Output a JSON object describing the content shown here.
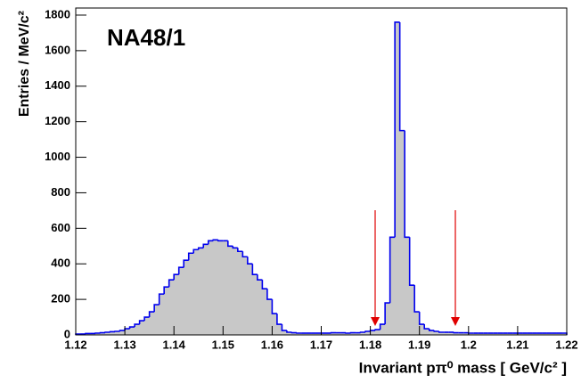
{
  "chart_data": {
    "type": "histogram",
    "annotation": "NA48/1",
    "xlabel": "Invariant pπ⁰ mass [ GeV/c² ]",
    "ylabel": "Entries / MeV/c²",
    "fill_color": "#c8c8c8",
    "line_color": "#0000ee",
    "bins": [
      1.12,
      1.121,
      1.122,
      1.123,
      1.124,
      1.125,
      1.126,
      1.127,
      1.128,
      1.129,
      1.13,
      1.131,
      1.132,
      1.133,
      1.134,
      1.135,
      1.136,
      1.137,
      1.138,
      1.139,
      1.14,
      1.141,
      1.142,
      1.143,
      1.144,
      1.145,
      1.146,
      1.147,
      1.148,
      1.149,
      1.15,
      1.151,
      1.152,
      1.153,
      1.154,
      1.155,
      1.156,
      1.157,
      1.158,
      1.159,
      1.16,
      1.161,
      1.162,
      1.163,
      1.164,
      1.165,
      1.166,
      1.167,
      1.168,
      1.169,
      1.17,
      1.171,
      1.172,
      1.173,
      1.174,
      1.175,
      1.176,
      1.177,
      1.178,
      1.179,
      1.18,
      1.181,
      1.182,
      1.183,
      1.184,
      1.185,
      1.186,
      1.187,
      1.188,
      1.189,
      1.19,
      1.191,
      1.192,
      1.193,
      1.194,
      1.195,
      1.196,
      1.197,
      1.198,
      1.199,
      1.2,
      1.201,
      1.202,
      1.203,
      1.204,
      1.205,
      1.206,
      1.207,
      1.208,
      1.209,
      1.21,
      1.211,
      1.212,
      1.213,
      1.214,
      1.215,
      1.216,
      1.217,
      1.218,
      1.219,
      1.22
    ],
    "values": [
      5,
      5,
      8,
      8,
      10,
      12,
      15,
      18,
      20,
      25,
      35,
      45,
      60,
      80,
      100,
      130,
      170,
      230,
      270,
      310,
      340,
      380,
      420,
      460,
      480,
      490,
      510,
      530,
      535,
      530,
      530,
      500,
      490,
      470,
      440,
      400,
      340,
      310,
      260,
      200,
      120,
      60,
      25,
      15,
      12,
      10,
      10,
      10,
      10,
      10,
      10,
      10,
      12,
      12,
      12,
      10,
      12,
      12,
      15,
      20,
      25,
      30,
      60,
      180,
      550,
      1760,
      1150,
      550,
      280,
      130,
      60,
      35,
      25,
      20,
      15,
      15,
      15,
      12,
      12,
      12,
      10,
      10,
      10,
      10,
      10,
      10,
      10,
      10,
      10,
      10,
      10,
      10,
      10,
      10,
      10,
      10,
      10,
      10,
      10,
      10
    ],
    "xlim": [
      1.12,
      1.22
    ],
    "ylim": [
      0,
      1840
    ],
    "xticks": [
      1.12,
      1.13,
      1.14,
      1.15,
      1.16,
      1.17,
      1.18,
      1.19,
      1.2,
      1.21,
      1.22
    ],
    "yticks": [
      0,
      200,
      400,
      600,
      800,
      1000,
      1200,
      1400,
      1600,
      1800
    ]
  }
}
